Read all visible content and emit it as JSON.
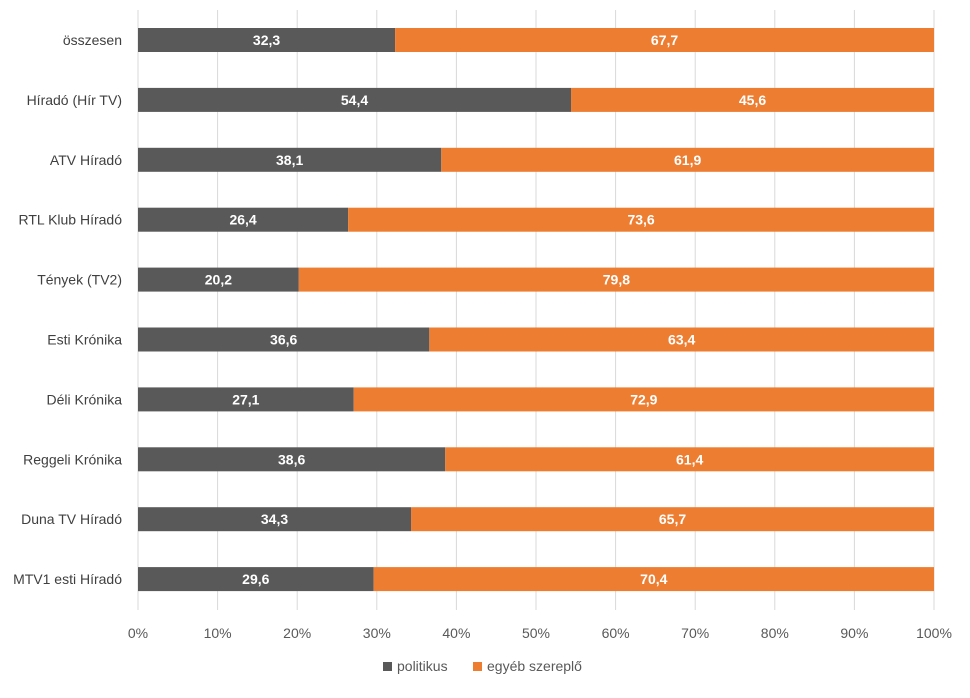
{
  "chart_data": {
    "type": "bar",
    "orientation": "horizontal",
    "stacked": "percent",
    "categories": [
      "összesen",
      "Híradó (Hír TV)",
      "ATV Híradó",
      "RTL Klub Híradó",
      "Tények (TV2)",
      "Esti Krónika",
      "Déli Krónika",
      "Reggeli Krónika",
      "Duna TV Híradó",
      "MTV1 esti Híradó"
    ],
    "series": [
      {
        "name": "politikus",
        "color": "#595959",
        "values": [
          32.3,
          54.4,
          38.1,
          26.4,
          20.2,
          36.6,
          27.1,
          38.6,
          34.3,
          29.6
        ],
        "labels": [
          "32,3",
          "54,4",
          "38,1",
          "26,4",
          "20,2",
          "36,6",
          "27,1",
          "38,6",
          "34,3",
          "29,6"
        ]
      },
      {
        "name": "egyéb szereplő",
        "color": "#ED7D31",
        "values": [
          67.7,
          45.6,
          61.9,
          73.6,
          79.8,
          63.4,
          72.9,
          61.4,
          65.7,
          70.4
        ],
        "labels": [
          "67,7",
          "45,6",
          "61,9",
          "73,6",
          "79,8",
          "63,4",
          "72,9",
          "61,4",
          "65,7",
          "70,4"
        ]
      }
    ],
    "xlim": [
      0,
      100
    ],
    "xticks": [
      "0%",
      "10%",
      "20%",
      "30%",
      "40%",
      "50%",
      "60%",
      "70%",
      "80%",
      "90%",
      "100%"
    ],
    "grid": true,
    "legend": "bottom"
  }
}
